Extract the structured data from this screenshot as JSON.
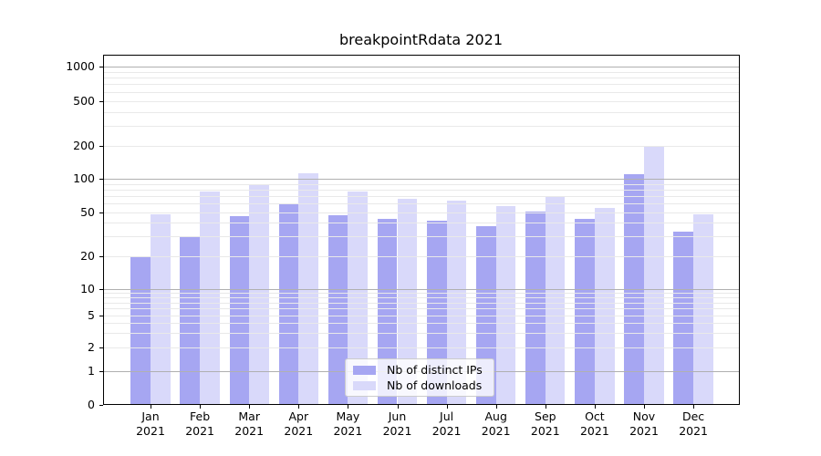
{
  "title": "breakpointRdata 2021",
  "chart_data": {
    "type": "bar",
    "title": "breakpointRdata 2021",
    "categories": [
      "Jan",
      "Feb",
      "Mar",
      "Apr",
      "May",
      "Jun",
      "Jul",
      "Aug",
      "Sep",
      "Oct",
      "Nov",
      "Dec"
    ],
    "x_tick_year": "2021",
    "series": [
      {
        "name": "Nb of distinct IPs",
        "key": "distinct-ips",
        "color": "#a6a6f2",
        "values": [
          20,
          30,
          46,
          59,
          47,
          43,
          42,
          37,
          51,
          43,
          111,
          33
        ]
      },
      {
        "name": "Nb of downloads",
        "key": "downloads",
        "color": "#d9d9fa",
        "values": [
          48,
          77,
          88,
          112,
          77,
          66,
          64,
          57,
          68,
          55,
          201,
          48
        ]
      }
    ],
    "y_axis": {
      "scale": "symlog",
      "tick_values": [
        0,
        1,
        2,
        5,
        10,
        20,
        50,
        100,
        200,
        500,
        1000
      ],
      "tick_labels": [
        "0",
        "1",
        "2",
        "5",
        "10",
        "20",
        "50",
        "100",
        "200",
        "500",
        "1000"
      ]
    },
    "grid": true,
    "legend_position": "lower-center",
    "colors": {
      "grid_major": "#b0b0b0",
      "grid_minor": "#e9e9e9",
      "spine": "#000000",
      "legend_border": "#cccccc",
      "background": "#ffffff"
    }
  }
}
